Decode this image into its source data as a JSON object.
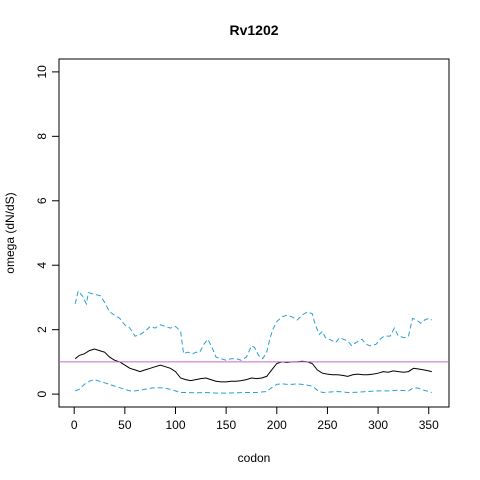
{
  "chart_data": {
    "type": "line",
    "title": "Rv1202",
    "xlabel": "codon",
    "ylabel": "omega (dN/dS)",
    "xlim": [
      -15,
      370
    ],
    "ylim": [
      -0.4,
      10.4
    ],
    "x_ticks": [
      0,
      50,
      100,
      150,
      200,
      250,
      300,
      350
    ],
    "y_ticks": [
      0,
      2,
      4,
      6,
      8,
      10
    ],
    "grid": false,
    "reference_line": {
      "y": 1,
      "color": "#cc66cc"
    },
    "series": [
      {
        "style": "dashed",
        "color": "#2a9fd6",
        "points": [
          [
            1,
            2.8
          ],
          [
            4,
            3.2
          ],
          [
            8,
            3.05
          ],
          [
            12,
            2.8
          ],
          [
            14,
            3.15
          ],
          [
            20,
            3.1
          ],
          [
            26,
            3.05
          ],
          [
            30,
            2.85
          ],
          [
            35,
            2.55
          ],
          [
            40,
            2.45
          ],
          [
            45,
            2.35
          ],
          [
            50,
            2.15
          ],
          [
            55,
            2.05
          ],
          [
            60,
            1.8
          ],
          [
            65,
            1.85
          ],
          [
            70,
            1.95
          ],
          [
            75,
            2.1
          ],
          [
            80,
            2.05
          ],
          [
            85,
            2.15
          ],
          [
            90,
            2.1
          ],
          [
            95,
            2.05
          ],
          [
            100,
            2.1
          ],
          [
            105,
            1.95
          ],
          [
            108,
            1.25
          ],
          [
            112,
            1.3
          ],
          [
            117,
            1.25
          ],
          [
            120,
            1.3
          ],
          [
            124,
            1.3
          ],
          [
            128,
            1.55
          ],
          [
            132,
            1.7
          ],
          [
            136,
            1.45
          ],
          [
            140,
            1.15
          ],
          [
            145,
            1.1
          ],
          [
            150,
            1.05
          ],
          [
            155,
            1.1
          ],
          [
            160,
            1.1
          ],
          [
            165,
            1.05
          ],
          [
            170,
            1.15
          ],
          [
            175,
            1.5
          ],
          [
            178,
            1.45
          ],
          [
            182,
            1.2
          ],
          [
            186,
            1.1
          ],
          [
            190,
            1.3
          ],
          [
            193,
            1.7
          ],
          [
            196,
            2.0
          ],
          [
            200,
            2.25
          ],
          [
            205,
            2.4
          ],
          [
            210,
            2.45
          ],
          [
            215,
            2.4
          ],
          [
            220,
            2.3
          ],
          [
            225,
            2.45
          ],
          [
            230,
            2.55
          ],
          [
            235,
            2.5
          ],
          [
            238,
            2.15
          ],
          [
            242,
            1.85
          ],
          [
            245,
            1.95
          ],
          [
            248,
            1.75
          ],
          [
            252,
            1.7
          ],
          [
            258,
            1.6
          ],
          [
            262,
            1.75
          ],
          [
            266,
            1.7
          ],
          [
            270,
            1.65
          ],
          [
            274,
            1.5
          ],
          [
            278,
            1.6
          ],
          [
            284,
            1.7
          ],
          [
            288,
            1.55
          ],
          [
            292,
            1.5
          ],
          [
            298,
            1.55
          ],
          [
            302,
            1.7
          ],
          [
            306,
            1.8
          ],
          [
            312,
            1.8
          ],
          [
            316,
            2.05
          ],
          [
            320,
            1.8
          ],
          [
            326,
            1.75
          ],
          [
            330,
            1.8
          ],
          [
            334,
            2.35
          ],
          [
            338,
            2.3
          ],
          [
            342,
            2.2
          ],
          [
            346,
            2.3
          ],
          [
            350,
            2.35
          ],
          [
            353,
            2.3
          ]
        ]
      },
      {
        "style": "solid",
        "color": "#000000",
        "points": [
          [
            1,
            1.1
          ],
          [
            5,
            1.2
          ],
          [
            10,
            1.25
          ],
          [
            15,
            1.35
          ],
          [
            20,
            1.4
          ],
          [
            25,
            1.35
          ],
          [
            30,
            1.3
          ],
          [
            35,
            1.15
          ],
          [
            40,
            1.05
          ],
          [
            45,
            1.0
          ],
          [
            50,
            0.9
          ],
          [
            55,
            0.8
          ],
          [
            60,
            0.75
          ],
          [
            65,
            0.7
          ],
          [
            70,
            0.75
          ],
          [
            75,
            0.8
          ],
          [
            80,
            0.85
          ],
          [
            85,
            0.9
          ],
          [
            90,
            0.85
          ],
          [
            95,
            0.8
          ],
          [
            100,
            0.7
          ],
          [
            105,
            0.5
          ],
          [
            110,
            0.45
          ],
          [
            115,
            0.42
          ],
          [
            120,
            0.45
          ],
          [
            125,
            0.48
          ],
          [
            130,
            0.5
          ],
          [
            135,
            0.45
          ],
          [
            140,
            0.4
          ],
          [
            145,
            0.38
          ],
          [
            150,
            0.38
          ],
          [
            155,
            0.4
          ],
          [
            160,
            0.4
          ],
          [
            165,
            0.42
          ],
          [
            170,
            0.45
          ],
          [
            175,
            0.5
          ],
          [
            180,
            0.48
          ],
          [
            185,
            0.5
          ],
          [
            190,
            0.55
          ],
          [
            195,
            0.75
          ],
          [
            200,
            0.95
          ],
          [
            205,
            1.0
          ],
          [
            210,
            0.98
          ],
          [
            215,
            1.0
          ],
          [
            220,
            1.0
          ],
          [
            225,
            1.02
          ],
          [
            230,
            1.0
          ],
          [
            235,
            0.95
          ],
          [
            240,
            0.75
          ],
          [
            245,
            0.65
          ],
          [
            250,
            0.62
          ],
          [
            255,
            0.6
          ],
          [
            260,
            0.6
          ],
          [
            265,
            0.58
          ],
          [
            270,
            0.55
          ],
          [
            275,
            0.6
          ],
          [
            280,
            0.62
          ],
          [
            285,
            0.6
          ],
          [
            290,
            0.6
          ],
          [
            295,
            0.62
          ],
          [
            300,
            0.65
          ],
          [
            305,
            0.7
          ],
          [
            310,
            0.68
          ],
          [
            315,
            0.72
          ],
          [
            320,
            0.7
          ],
          [
            325,
            0.68
          ],
          [
            330,
            0.7
          ],
          [
            335,
            0.8
          ],
          [
            340,
            0.78
          ],
          [
            345,
            0.75
          ],
          [
            350,
            0.72
          ],
          [
            353,
            0.7
          ]
        ]
      },
      {
        "style": "dashed",
        "color": "#2a9fd6",
        "points": [
          [
            1,
            0.1
          ],
          [
            5,
            0.15
          ],
          [
            10,
            0.3
          ],
          [
            15,
            0.4
          ],
          [
            20,
            0.45
          ],
          [
            25,
            0.4
          ],
          [
            30,
            0.35
          ],
          [
            35,
            0.3
          ],
          [
            40,
            0.25
          ],
          [
            45,
            0.2
          ],
          [
            50,
            0.15
          ],
          [
            55,
            0.1
          ],
          [
            60,
            0.1
          ],
          [
            65,
            0.12
          ],
          [
            70,
            0.15
          ],
          [
            75,
            0.18
          ],
          [
            80,
            0.2
          ],
          [
            85,
            0.2
          ],
          [
            90,
            0.18
          ],
          [
            95,
            0.15
          ],
          [
            100,
            0.1
          ],
          [
            105,
            0.05
          ],
          [
            110,
            0.05
          ],
          [
            120,
            0.04
          ],
          [
            130,
            0.05
          ],
          [
            140,
            0.03
          ],
          [
            150,
            0.03
          ],
          [
            160,
            0.04
          ],
          [
            170,
            0.05
          ],
          [
            180,
            0.05
          ],
          [
            190,
            0.08
          ],
          [
            195,
            0.2
          ],
          [
            200,
            0.3
          ],
          [
            205,
            0.32
          ],
          [
            210,
            0.3
          ],
          [
            215,
            0.3
          ],
          [
            220,
            0.32
          ],
          [
            225,
            0.3
          ],
          [
            230,
            0.28
          ],
          [
            235,
            0.25
          ],
          [
            240,
            0.12
          ],
          [
            245,
            0.05
          ],
          [
            250,
            0.06
          ],
          [
            260,
            0.08
          ],
          [
            270,
            0.05
          ],
          [
            280,
            0.06
          ],
          [
            290,
            0.08
          ],
          [
            300,
            0.1
          ],
          [
            310,
            0.1
          ],
          [
            320,
            0.12
          ],
          [
            330,
            0.1
          ],
          [
            335,
            0.2
          ],
          [
            340,
            0.18
          ],
          [
            345,
            0.12
          ],
          [
            350,
            0.08
          ],
          [
            353,
            0.05
          ]
        ]
      }
    ]
  }
}
